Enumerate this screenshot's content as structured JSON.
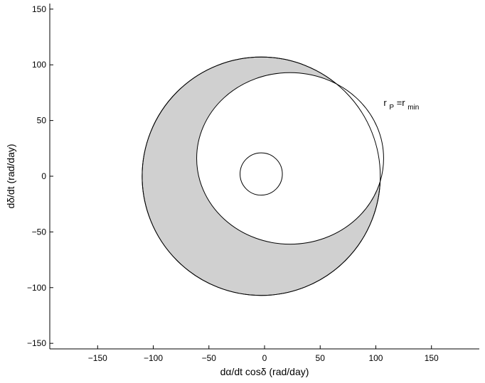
{
  "chart_data": {
    "type": "line",
    "title": "",
    "xlabel": "dα/dt cosδ (rad/day)",
    "ylabel": "dδ/dt (rad/day)",
    "xlim": [
      -193,
      193
    ],
    "ylim": [
      -155,
      155
    ],
    "xticks": [
      -150,
      -100,
      -50,
      0,
      50,
      100,
      150
    ],
    "yticks": [
      -150,
      -100,
      -50,
      0,
      50,
      100,
      150
    ],
    "xtick_labels": [
      "−150",
      "−100",
      "−50",
      "0",
      "50",
      "100",
      "150"
    ],
    "ytick_labels": [
      "−150",
      "−100",
      "−50",
      "0",
      "50",
      "100",
      "150"
    ],
    "grid": false,
    "shapes": [
      {
        "name": "outer-circle",
        "center": [
          -3,
          0
        ],
        "radius": 107,
        "fill": "#d0d0d0"
      },
      {
        "name": "rp-rmin-ellipse",
        "center": [
          23,
          16
        ],
        "rx": 84,
        "ry": 77,
        "fill": "#ffffff"
      },
      {
        "name": "inner-circle",
        "center": [
          -3,
          2
        ],
        "radius": 19,
        "fill": "none"
      }
    ],
    "annotations": [
      {
        "text_main": "r",
        "sub1": "P",
        "eq": "=r",
        "sub2": "min",
        "x": 107,
        "y": 63
      }
    ]
  }
}
